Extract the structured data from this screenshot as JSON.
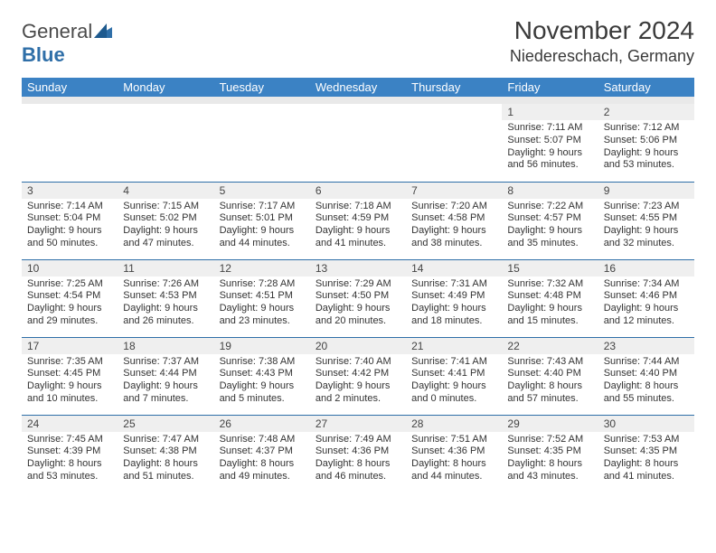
{
  "logo": {
    "word1": "General",
    "word2": "Blue"
  },
  "title": "November 2024",
  "location": "Niedereschach, Germany",
  "colors": {
    "header_bg": "#3b82c4",
    "header_fg": "#ffffff",
    "daynum_bg": "#efefef",
    "row_border": "#2f6fa8",
    "logo_blue": "#2f6fa8",
    "logo_text": "#4a4a4a"
  },
  "weekdays": [
    "Sunday",
    "Monday",
    "Tuesday",
    "Wednesday",
    "Thursday",
    "Friday",
    "Saturday"
  ],
  "weeks": [
    [
      {
        "n": "",
        "sr": "",
        "ss": "",
        "dl": ""
      },
      {
        "n": "",
        "sr": "",
        "ss": "",
        "dl": ""
      },
      {
        "n": "",
        "sr": "",
        "ss": "",
        "dl": ""
      },
      {
        "n": "",
        "sr": "",
        "ss": "",
        "dl": ""
      },
      {
        "n": "",
        "sr": "",
        "ss": "",
        "dl": ""
      },
      {
        "n": "1",
        "sr": "Sunrise: 7:11 AM",
        "ss": "Sunset: 5:07 PM",
        "dl": "Daylight: 9 hours and 56 minutes."
      },
      {
        "n": "2",
        "sr": "Sunrise: 7:12 AM",
        "ss": "Sunset: 5:06 PM",
        "dl": "Daylight: 9 hours and 53 minutes."
      }
    ],
    [
      {
        "n": "3",
        "sr": "Sunrise: 7:14 AM",
        "ss": "Sunset: 5:04 PM",
        "dl": "Daylight: 9 hours and 50 minutes."
      },
      {
        "n": "4",
        "sr": "Sunrise: 7:15 AM",
        "ss": "Sunset: 5:02 PM",
        "dl": "Daylight: 9 hours and 47 minutes."
      },
      {
        "n": "5",
        "sr": "Sunrise: 7:17 AM",
        "ss": "Sunset: 5:01 PM",
        "dl": "Daylight: 9 hours and 44 minutes."
      },
      {
        "n": "6",
        "sr": "Sunrise: 7:18 AM",
        "ss": "Sunset: 4:59 PM",
        "dl": "Daylight: 9 hours and 41 minutes."
      },
      {
        "n": "7",
        "sr": "Sunrise: 7:20 AM",
        "ss": "Sunset: 4:58 PM",
        "dl": "Daylight: 9 hours and 38 minutes."
      },
      {
        "n": "8",
        "sr": "Sunrise: 7:22 AM",
        "ss": "Sunset: 4:57 PM",
        "dl": "Daylight: 9 hours and 35 minutes."
      },
      {
        "n": "9",
        "sr": "Sunrise: 7:23 AM",
        "ss": "Sunset: 4:55 PM",
        "dl": "Daylight: 9 hours and 32 minutes."
      }
    ],
    [
      {
        "n": "10",
        "sr": "Sunrise: 7:25 AM",
        "ss": "Sunset: 4:54 PM",
        "dl": "Daylight: 9 hours and 29 minutes."
      },
      {
        "n": "11",
        "sr": "Sunrise: 7:26 AM",
        "ss": "Sunset: 4:53 PM",
        "dl": "Daylight: 9 hours and 26 minutes."
      },
      {
        "n": "12",
        "sr": "Sunrise: 7:28 AM",
        "ss": "Sunset: 4:51 PM",
        "dl": "Daylight: 9 hours and 23 minutes."
      },
      {
        "n": "13",
        "sr": "Sunrise: 7:29 AM",
        "ss": "Sunset: 4:50 PM",
        "dl": "Daylight: 9 hours and 20 minutes."
      },
      {
        "n": "14",
        "sr": "Sunrise: 7:31 AM",
        "ss": "Sunset: 4:49 PM",
        "dl": "Daylight: 9 hours and 18 minutes."
      },
      {
        "n": "15",
        "sr": "Sunrise: 7:32 AM",
        "ss": "Sunset: 4:48 PM",
        "dl": "Daylight: 9 hours and 15 minutes."
      },
      {
        "n": "16",
        "sr": "Sunrise: 7:34 AM",
        "ss": "Sunset: 4:46 PM",
        "dl": "Daylight: 9 hours and 12 minutes."
      }
    ],
    [
      {
        "n": "17",
        "sr": "Sunrise: 7:35 AM",
        "ss": "Sunset: 4:45 PM",
        "dl": "Daylight: 9 hours and 10 minutes."
      },
      {
        "n": "18",
        "sr": "Sunrise: 7:37 AM",
        "ss": "Sunset: 4:44 PM",
        "dl": "Daylight: 9 hours and 7 minutes."
      },
      {
        "n": "19",
        "sr": "Sunrise: 7:38 AM",
        "ss": "Sunset: 4:43 PM",
        "dl": "Daylight: 9 hours and 5 minutes."
      },
      {
        "n": "20",
        "sr": "Sunrise: 7:40 AM",
        "ss": "Sunset: 4:42 PM",
        "dl": "Daylight: 9 hours and 2 minutes."
      },
      {
        "n": "21",
        "sr": "Sunrise: 7:41 AM",
        "ss": "Sunset: 4:41 PM",
        "dl": "Daylight: 9 hours and 0 minutes."
      },
      {
        "n": "22",
        "sr": "Sunrise: 7:43 AM",
        "ss": "Sunset: 4:40 PM",
        "dl": "Daylight: 8 hours and 57 minutes."
      },
      {
        "n": "23",
        "sr": "Sunrise: 7:44 AM",
        "ss": "Sunset: 4:40 PM",
        "dl": "Daylight: 8 hours and 55 minutes."
      }
    ],
    [
      {
        "n": "24",
        "sr": "Sunrise: 7:45 AM",
        "ss": "Sunset: 4:39 PM",
        "dl": "Daylight: 8 hours and 53 minutes."
      },
      {
        "n": "25",
        "sr": "Sunrise: 7:47 AM",
        "ss": "Sunset: 4:38 PM",
        "dl": "Daylight: 8 hours and 51 minutes."
      },
      {
        "n": "26",
        "sr": "Sunrise: 7:48 AM",
        "ss": "Sunset: 4:37 PM",
        "dl": "Daylight: 8 hours and 49 minutes."
      },
      {
        "n": "27",
        "sr": "Sunrise: 7:49 AM",
        "ss": "Sunset: 4:36 PM",
        "dl": "Daylight: 8 hours and 46 minutes."
      },
      {
        "n": "28",
        "sr": "Sunrise: 7:51 AM",
        "ss": "Sunset: 4:36 PM",
        "dl": "Daylight: 8 hours and 44 minutes."
      },
      {
        "n": "29",
        "sr": "Sunrise: 7:52 AM",
        "ss": "Sunset: 4:35 PM",
        "dl": "Daylight: 8 hours and 43 minutes."
      },
      {
        "n": "30",
        "sr": "Sunrise: 7:53 AM",
        "ss": "Sunset: 4:35 PM",
        "dl": "Daylight: 8 hours and 41 minutes."
      }
    ]
  ]
}
